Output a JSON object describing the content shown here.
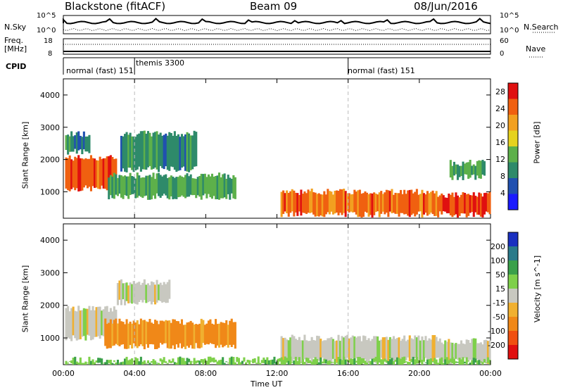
{
  "header": {
    "station": "Blackstone (fitACF)",
    "beam": "Beam 09",
    "date": "08/Jun/2016"
  },
  "strips": {
    "nsky_label": "N.Sky",
    "nsky_tick_top": "10^5",
    "nsky_tick_bottom": "10^0",
    "nsearch_label": "N.Search",
    "nsearch_tick_top": "10^5",
    "nsearch_tick_bottom": "10^0",
    "freq_label_1": "Freq.",
    "freq_label_2": "[MHz]",
    "freq_tick_top": "18",
    "freq_tick_bottom": "8",
    "nave_label": "Nave",
    "nave_tick_top": "60",
    "nave_tick_bottom": "0",
    "cpid_label": "CPID",
    "cpid_segments": [
      {
        "label": "normal (fast) 151",
        "start_hour": 0
      },
      {
        "label": "themis 3300",
        "start_hour": 4.0
      },
      {
        "label": "normal (fast) 151",
        "start_hour": 16.0
      }
    ]
  },
  "axes": {
    "ylabel": "Slant Range [km]",
    "xlabel": "Time UT",
    "yticks": [
      "1000",
      "2000",
      "3000",
      "4000"
    ],
    "xticks": [
      "00:00",
      "04:00",
      "08:00",
      "12:00",
      "16:00",
      "20:00",
      "00:00"
    ]
  },
  "chart_data": [
    {
      "type": "heatmap",
      "title": "",
      "xlabel": "",
      "ylabel": "Slant Range [km]",
      "xlim": [
        0,
        24
      ],
      "ylim": [
        180,
        4500
      ],
      "colorbar": {
        "label": "Power [dB]",
        "ticks": [
          "4",
          "8",
          "12",
          "16",
          "20",
          "24",
          "28"
        ],
        "range": [
          0,
          30
        ],
        "colors": [
          "#1a1aff",
          "#2050b0",
          "#2e8a6a",
          "#5db04a",
          "#e6d21e",
          "#f2a020",
          "#f06010",
          "#e01010"
        ]
      },
      "regions": [
        {
          "from_hour": 0.1,
          "to_hour": 3.0,
          "range_km": [
            1100,
            2050
          ],
          "level_db": 25
        },
        {
          "from_hour": 0.1,
          "to_hour": 1.5,
          "range_km": [
            2250,
            2800
          ],
          "level_db": 9
        },
        {
          "from_hour": 3.2,
          "to_hour": 7.5,
          "range_km": [
            1700,
            2800
          ],
          "level_db": 10
        },
        {
          "from_hour": 2.5,
          "to_hour": 9.7,
          "range_km": [
            850,
            1500
          ],
          "level_db": 12
        },
        {
          "from_hour": 12.2,
          "to_hour": 21.0,
          "range_km": [
            300,
            1000
          ],
          "level_db": 24
        },
        {
          "from_hour": 21.0,
          "to_hour": 24.0,
          "range_km": [
            300,
            900
          ],
          "level_db": 26
        },
        {
          "from_hour": 21.7,
          "to_hour": 23.7,
          "range_km": [
            1450,
            1900
          ],
          "level_db": 12
        }
      ]
    },
    {
      "type": "heatmap",
      "title": "",
      "xlabel": "Time UT",
      "ylabel": "Slant Range [km]",
      "xlim": [
        0,
        24
      ],
      "ylim": [
        180,
        4500
      ],
      "colorbar": {
        "label": "Velocity [m s^-1]",
        "ticks": [
          "200",
          "100",
          "50",
          "15",
          "-15",
          "-50",
          "-100",
          "-200"
        ],
        "range": [
          -250,
          250
        ],
        "colors": [
          "#1a30c0",
          "#2a7a8a",
          "#3aa04a",
          "#7ed04a",
          "#c8c8c0",
          "#f0b030",
          "#f08818",
          "#f05010",
          "#e01010"
        ]
      },
      "regions": [
        {
          "from_hour": 0.1,
          "to_hour": 3.0,
          "range_km": [
            1000,
            1900
          ],
          "velocity": 0
        },
        {
          "from_hour": 2.3,
          "to_hour": 9.7,
          "range_km": [
            750,
            1500
          ],
          "velocity": -60
        },
        {
          "from_hour": 3.0,
          "to_hour": 6.0,
          "range_km": [
            2100,
            2700
          ],
          "velocity": 0
        },
        {
          "from_hour": 12.2,
          "to_hour": 21.0,
          "range_km": [
            300,
            1000
          ],
          "velocity": 0
        },
        {
          "from_hour": 21.0,
          "to_hour": 24.0,
          "range_km": [
            300,
            900
          ],
          "velocity": 0
        },
        {
          "from_hour": 0.1,
          "to_hour": 24.0,
          "range_km": [
            180,
            330
          ],
          "velocity": 40
        }
      ]
    }
  ]
}
